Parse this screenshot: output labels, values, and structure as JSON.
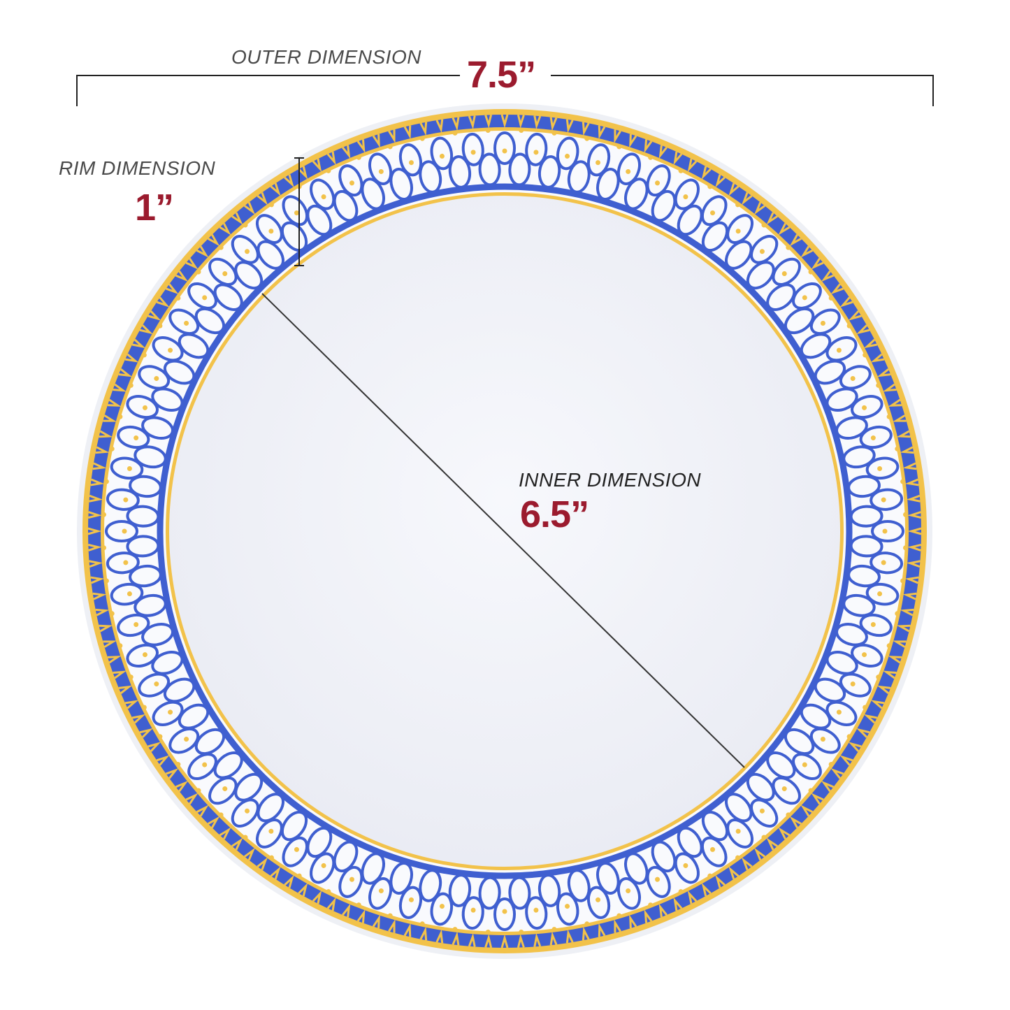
{
  "outer": {
    "label": "OUTER DIMENSION",
    "value": "7.5”"
  },
  "rim": {
    "label": "RIM DIMENSION",
    "value": "1”"
  },
  "inner": {
    "label": "INNER DIMENSION",
    "value": "6.5”"
  },
  "colors": {
    "accent": "#9b1b2e",
    "plate_blue": "#3f5fd0",
    "plate_gold": "#f2c24a",
    "line": "#222222"
  }
}
